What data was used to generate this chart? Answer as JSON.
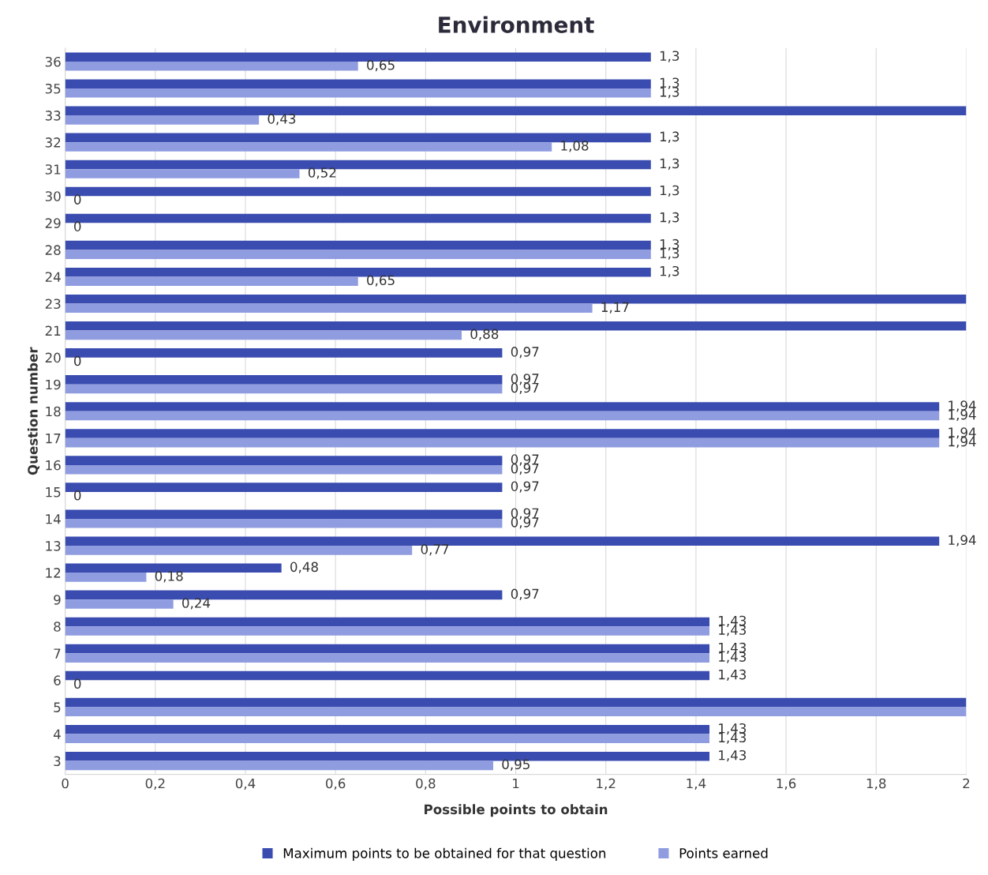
{
  "chart_data": {
    "type": "bar",
    "orientation": "horizontal",
    "title": "Environment",
    "xlabel": "Possible points to obtain",
    "ylabel": "Question number",
    "categories": [
      "36",
      "35",
      "33",
      "32",
      "31",
      "30",
      "29",
      "28",
      "24",
      "23",
      "21",
      "20",
      "19",
      "18",
      "17",
      "16",
      "15",
      "14",
      "13",
      "12",
      "9",
      "8",
      "7",
      "6",
      "5",
      "4",
      "3"
    ],
    "series": [
      {
        "name": "Maximum points to be obtained for that question",
        "color": "#3a4cb0",
        "values": [
          1.3,
          1.3,
          2,
          1.3,
          1.3,
          1.3,
          1.3,
          1.3,
          1.3,
          2,
          2,
          0.97,
          0.97,
          1.94,
          1.94,
          0.97,
          0.97,
          0.97,
          1.94,
          0.48,
          0.97,
          1.43,
          1.43,
          1.43,
          2,
          1.43,
          1.43
        ],
        "value_labels": [
          "1,3",
          "1,3",
          null,
          "1,3",
          "1,3",
          "1,3",
          "1,3",
          "1,3",
          "1,3",
          null,
          null,
          "0,97",
          "0,97",
          "1,94",
          "1,94",
          "0,97",
          "0,97",
          "0,97",
          "1,94",
          "0,48",
          "0,97",
          "1,43",
          "1,43",
          "1,43",
          null,
          "1,43",
          "1,43"
        ]
      },
      {
        "name": "Points earned",
        "color": "#8f9ce0",
        "values": [
          0.65,
          1.3,
          0.43,
          1.08,
          0.52,
          0,
          0,
          1.3,
          0.65,
          1.17,
          0.88,
          0,
          0.97,
          1.94,
          1.94,
          0.97,
          0,
          0.97,
          0.77,
          0.18,
          0.24,
          1.43,
          1.43,
          0,
          2,
          1.43,
          0.95
        ],
        "value_labels": [
          "0,65",
          "1,3",
          "0,43",
          "1,08",
          "0,52",
          "0",
          "0",
          "1,3",
          "0,65",
          "1,17",
          "0,88",
          "0",
          "0,97",
          "1,94",
          "1,94",
          "0,97",
          "0",
          "0,97",
          "0,77",
          "0,18",
          "0,24",
          "1,43",
          "1,43",
          "0",
          null,
          "1,43",
          "0,95"
        ]
      }
    ],
    "xlim": [
      0,
      2
    ],
    "xticks": [
      0,
      {
        "value": 0.2,
        "label": "0,2"
      },
      {
        "value": 0.4,
        "label": "0,4"
      },
      {
        "value": 0.6,
        "label": "0,6"
      },
      {
        "value": 0.8,
        "label": "0,8"
      },
      1,
      {
        "value": 1.2,
        "label": "1,2"
      },
      {
        "value": 1.4,
        "label": "1,4"
      },
      {
        "value": 1.6,
        "label": "1,6"
      },
      {
        "value": 1.8,
        "label": "1,8"
      },
      2
    ],
    "grid": "x",
    "legend": "bottom"
  }
}
